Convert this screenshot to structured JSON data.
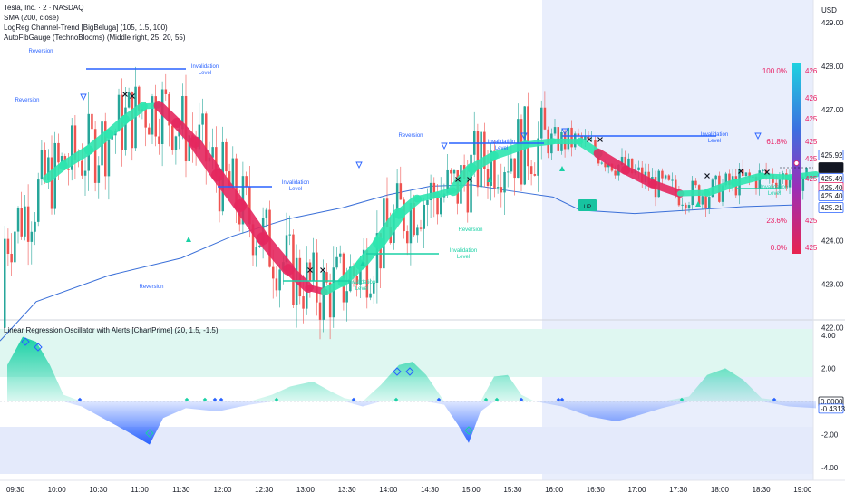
{
  "currency": "USD",
  "legend": {
    "symbol": "Tesla, Inc. · 2 · NASDAQ",
    "sma": "SMA (200, close)",
    "logreg": "LogReg Channel-Trend [BigBeluga] (105, 1.5, 100)",
    "autofib": "AutoFibGauge (TechnoBlooms)  (Middle right, 25, 20, 55)",
    "osc": "Linear Regression Oscillator with Alerts [ChartPrime] (20, 1.5, -1.5)"
  },
  "price_axis": {
    "ticks": [
      "429.00",
      "428.00",
      "427.00",
      "426.00",
      "425.00",
      "424.00",
      "423.00",
      "422.00"
    ]
  },
  "price_tags": [
    {
      "text": "425.92",
      "color": "#2962ff",
      "filled": false
    },
    {
      "text": "425.50",
      "color": "#131722",
      "filled": true
    },
    {
      "text": "425.49",
      "color": "#2962ff",
      "filled": false
    },
    {
      "text": "425.40",
      "color": "#e91e63",
      "filled": false
    },
    {
      "text": "425.40",
      "color": "#2962ff",
      "filled": false
    },
    {
      "text": "425.21",
      "color": "#2962ff",
      "filled": false
    }
  ],
  "osc_axis": {
    "ticks": [
      "4.00",
      "2.00",
      "0.0000",
      "-0.4313",
      "-2.00",
      "-4.00"
    ]
  },
  "time_axis": {
    "ticks": [
      "09:30",
      "10:00",
      "10:30",
      "11:00",
      "11:30",
      "12:00",
      "12:30",
      "13:00",
      "13:30",
      "14:00",
      "14:30",
      "15:00",
      "15:30",
      "16:00",
      "16:30",
      "17:00",
      "17:30",
      "18:00",
      "18:30",
      "19:00"
    ]
  },
  "fib_gauge": {
    "levels": [
      {
        "pct": "100.0%",
        "price": "426"
      },
      {
        "pct": "",
        "price": "426"
      },
      {
        "pct": "",
        "price": "425"
      },
      {
        "pct": "61.8%",
        "price": "425"
      },
      {
        "pct": "",
        "price": "425"
      },
      {
        "pct": "",
        "price": "425"
      },
      {
        "pct": "23.6%",
        "price": "425"
      },
      {
        "pct": "0.0%",
        "price": "425"
      }
    ]
  },
  "annotations": {
    "reversion": "Reversion",
    "invalidation_1": "Invalidation",
    "invalidation_2": "Level",
    "up_label": "UP"
  },
  "colors": {
    "up": "#26a69a",
    "down": "#ef5350",
    "sma": "#3a6fd8",
    "channel_up": "#2ee6b0",
    "channel_down": "#e5275f",
    "osc_pos": "#1ad1a5",
    "osc_neg": "#2962ff",
    "session": "#e9eefc"
  },
  "chart_data": {
    "type": "candlestick",
    "title": "Tesla, Inc. · 2 · NASDAQ",
    "ylim": [
      421.6,
      429.5
    ],
    "oscillator_ylim": [
      -4.6,
      5.2
    ],
    "sma_approx": [
      [
        0,
        421.7
      ],
      [
        40,
        422.6
      ],
      [
        120,
        423.2
      ],
      [
        200,
        423.6
      ],
      [
        256,
        424.1
      ],
      [
        318,
        424.5
      ],
      [
        377,
        424.75
      ],
      [
        428,
        425.05
      ],
      [
        475,
        425.25
      ],
      [
        520,
        425.28
      ],
      [
        560,
        425.15
      ],
      [
        610,
        425.0
      ],
      [
        640,
        424.7
      ],
      [
        700,
        424.62
      ],
      [
        760,
        424.7
      ],
      [
        820,
        424.78
      ],
      [
        880,
        424.82
      ]
    ],
    "channel_mid_approx": [
      [
        52,
        425.42
      ],
      [
        70,
        425.72
      ],
      [
        98,
        426.08
      ],
      [
        120,
        426.45
      ],
      [
        138,
        426.78
      ],
      [
        158,
        427.08
      ],
      [
        175,
        427.1
      ],
      [
        195,
        426.7
      ],
      [
        215,
        426.25
      ],
      [
        240,
        425.5
      ],
      [
        265,
        424.8
      ],
      [
        290,
        424.05
      ],
      [
        318,
        423.35
      ],
      [
        340,
        422.92
      ],
      [
        358,
        422.83
      ],
      [
        378,
        423.05
      ],
      [
        398,
        423.45
      ],
      [
        418,
        423.95
      ],
      [
        440,
        424.6
      ],
      [
        460,
        424.95
      ],
      [
        482,
        425.05
      ],
      [
        500,
        425.15
      ],
      [
        520,
        425.65
      ],
      [
        545,
        425.95
      ],
      [
        580,
        426.2
      ],
      [
        610,
        426.28
      ],
      [
        640,
        426.27
      ],
      [
        660,
        426.0
      ],
      [
        690,
        425.62
      ],
      [
        720,
        425.3
      ],
      [
        750,
        425.08
      ],
      [
        780,
        425.1
      ],
      [
        810,
        425.32
      ],
      [
        840,
        425.48
      ],
      [
        870,
        425.45
      ],
      [
        900,
        425.52
      ]
    ],
    "oscillator_approx": [
      [
        8,
        2.2
      ],
      [
        25,
        3.9
      ],
      [
        40,
        3.6
      ],
      [
        55,
        2.2
      ],
      [
        70,
        0.4
      ],
      [
        90,
        -0.3
      ],
      [
        110,
        -0.9
      ],
      [
        140,
        -1.8
      ],
      [
        165,
        -2.6
      ],
      [
        180,
        -1.0
      ],
      [
        205,
        -0.4
      ],
      [
        240,
        -0.6
      ],
      [
        275,
        -0.2
      ],
      [
        300,
        0.4
      ],
      [
        320,
        0.9
      ],
      [
        345,
        1.2
      ],
      [
        365,
        0.6
      ],
      [
        380,
        0.2
      ],
      [
        400,
        -0.3
      ],
      [
        420,
        1.0
      ],
      [
        440,
        2.2
      ],
      [
        455,
        2.4
      ],
      [
        470,
        1.6
      ],
      [
        490,
        -0.2
      ],
      [
        505,
        -1.4
      ],
      [
        517,
        -2.5
      ],
      [
        530,
        -0.6
      ],
      [
        545,
        1.5
      ],
      [
        560,
        1.6
      ],
      [
        575,
        0.4
      ],
      [
        590,
        0.0
      ],
      [
        620,
        -0.3
      ],
      [
        650,
        -0.9
      ],
      [
        680,
        -1.2
      ],
      [
        700,
        -0.9
      ],
      [
        730,
        -0.4
      ],
      [
        760,
        0.3
      ],
      [
        780,
        1.6
      ],
      [
        800,
        2.0
      ],
      [
        820,
        1.3
      ],
      [
        840,
        0.2
      ],
      [
        870,
        -0.3
      ],
      [
        900,
        -0.4
      ]
    ]
  }
}
